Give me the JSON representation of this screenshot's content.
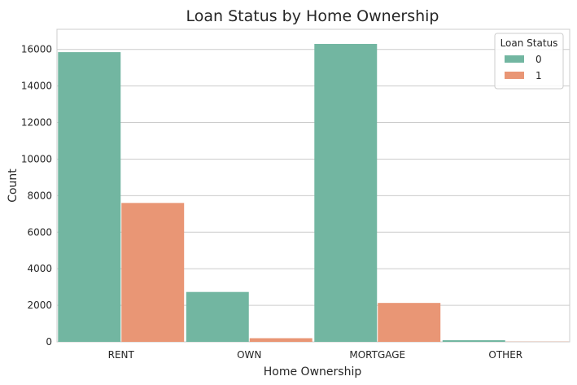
{
  "chart_data": {
    "type": "bar",
    "title": "Loan Status by Home Ownership",
    "xlabel": "Home Ownership",
    "ylabel": "Count",
    "categories": [
      "RENT",
      "OWN",
      "MORTGAGE",
      "OTHER"
    ],
    "series": [
      {
        "name": "0",
        "values": [
          15850,
          2730,
          16300,
          90
        ],
        "color": "#72b6a1"
      },
      {
        "name": "1",
        "values": [
          7600,
          200,
          2130,
          10
        ],
        "color": "#e99675"
      }
    ],
    "ylim": [
      0,
      17100
    ],
    "yticks": [
      "0",
      "2000",
      "4000",
      "6000",
      "8000",
      "10000",
      "12000",
      "14000",
      "16000"
    ],
    "grid": "horizontal",
    "legend": {
      "title": "Loan Status",
      "placement": "top-right"
    },
    "style": "seaborn-whitegrid"
  }
}
